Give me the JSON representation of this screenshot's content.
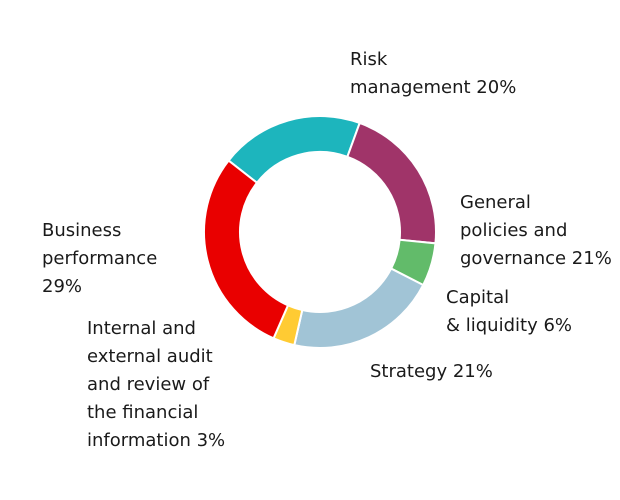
{
  "chart_data": {
    "type": "pie",
    "donut": true,
    "title": "",
    "grid": false,
    "legend": "none",
    "slices": [
      {
        "id": "risk",
        "label": "Risk\nmanagement 20%",
        "value": 20,
        "color": "#1db5bd"
      },
      {
        "id": "policies",
        "label": "General\npolicies and\ngovernance 21%",
        "value": 21,
        "color": "#a03469"
      },
      {
        "id": "capital",
        "label": "Capital\n& liquidity 6%",
        "value": 6,
        "color": "#62bb6a"
      },
      {
        "id": "strategy",
        "label": "Strategy 21%",
        "value": 21,
        "color": "#a1c4d6"
      },
      {
        "id": "audit",
        "label": "Internal and\nexternal audit\nand review of\nthe financial\ninformation 3%",
        "value": 3,
        "color": "#ffcb33"
      },
      {
        "id": "business",
        "label": "Business\nperformance\n29%",
        "value": 29,
        "color": "#e90000"
      }
    ]
  }
}
